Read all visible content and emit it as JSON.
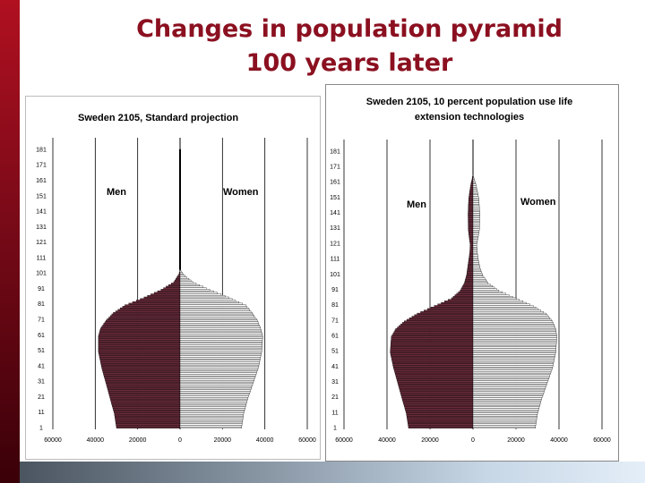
{
  "slide": {
    "title_line1": "Changes in population pyramid",
    "title_line2": "100 years later"
  },
  "colors": {
    "accent": "#8b1020",
    "men_fill": "#6b2c3c",
    "women_fill": "#ffffff",
    "bar_stroke": "#000000"
  },
  "chart_data": [
    {
      "type": "bar",
      "orientation": "horizontal-pyramid",
      "title": "Sweden 2105, Standard projection",
      "left_label": "Men",
      "right_label": "Women",
      "age_ticks": [
        "1",
        "11",
        "21",
        "31",
        "41",
        "51",
        "61",
        "71",
        "81",
        "91",
        "101",
        "111",
        "121",
        "131",
        "141",
        "151",
        "161",
        "171",
        "181"
      ],
      "x_ticks": [
        "60000",
        "40000",
        "20000",
        "0",
        "20000",
        "40000",
        "60000"
      ],
      "xlim": [
        -60000,
        60000
      ],
      "ylim": [
        1,
        185
      ],
      "grid": "vertical",
      "profile": {
        "age": [
          1,
          10,
          20,
          30,
          40,
          50,
          60,
          65,
          70,
          75,
          80,
          85,
          90,
          95,
          100,
          103
        ],
        "men": [
          30000,
          31000,
          33000,
          35000,
          37000,
          38500,
          38500,
          37500,
          35000,
          31500,
          26000,
          17000,
          9000,
          3000,
          600,
          0
        ],
        "women": [
          29000,
          30000,
          32000,
          34500,
          37000,
          38500,
          39000,
          38000,
          36500,
          34000,
          31000,
          23000,
          14000,
          6000,
          1500,
          0
        ]
      },
      "tail_to_age": 181
    },
    {
      "type": "bar",
      "orientation": "horizontal-pyramid",
      "title": "Sweden 2105, 10 percent population use life extension technologies",
      "title_line1": "Sweden 2105, 10 percent population use life",
      "title_line2": "extension technologies",
      "left_label": "Men",
      "right_label": "Women",
      "age_ticks": [
        "1",
        "11",
        "21",
        "31",
        "41",
        "51",
        "61",
        "71",
        "81",
        "91",
        "101",
        "111",
        "121",
        "131",
        "141",
        "151",
        "161",
        "171",
        "181"
      ],
      "x_ticks": [
        "60000",
        "40000",
        "20000",
        "0",
        "20000",
        "40000",
        "60000"
      ],
      "xlim": [
        -60000,
        60000
      ],
      "ylim": [
        1,
        185
      ],
      "grid": "vertical",
      "profile": {
        "age": [
          1,
          10,
          20,
          30,
          40,
          50,
          60,
          65,
          70,
          75,
          80,
          85,
          90,
          95,
          100,
          105,
          110,
          115,
          120,
          125,
          130,
          140,
          150,
          155,
          160,
          163,
          166
        ],
        "men": [
          30000,
          31000,
          33000,
          35000,
          37000,
          38500,
          38000,
          36000,
          32000,
          26000,
          18000,
          10000,
          6000,
          4000,
          3000,
          2500,
          2000,
          1500,
          1300,
          1800,
          2200,
          2300,
          2000,
          1500,
          900,
          400,
          0
        ],
        "women": [
          29000,
          30000,
          32000,
          34500,
          37000,
          38500,
          39000,
          38500,
          37000,
          34000,
          28000,
          20000,
          12000,
          7000,
          4500,
          3200,
          2500,
          2000,
          1700,
          2400,
          3000,
          3200,
          2700,
          2000,
          1200,
          500,
          0
        ]
      },
      "tail_to_age": 0
    }
  ]
}
